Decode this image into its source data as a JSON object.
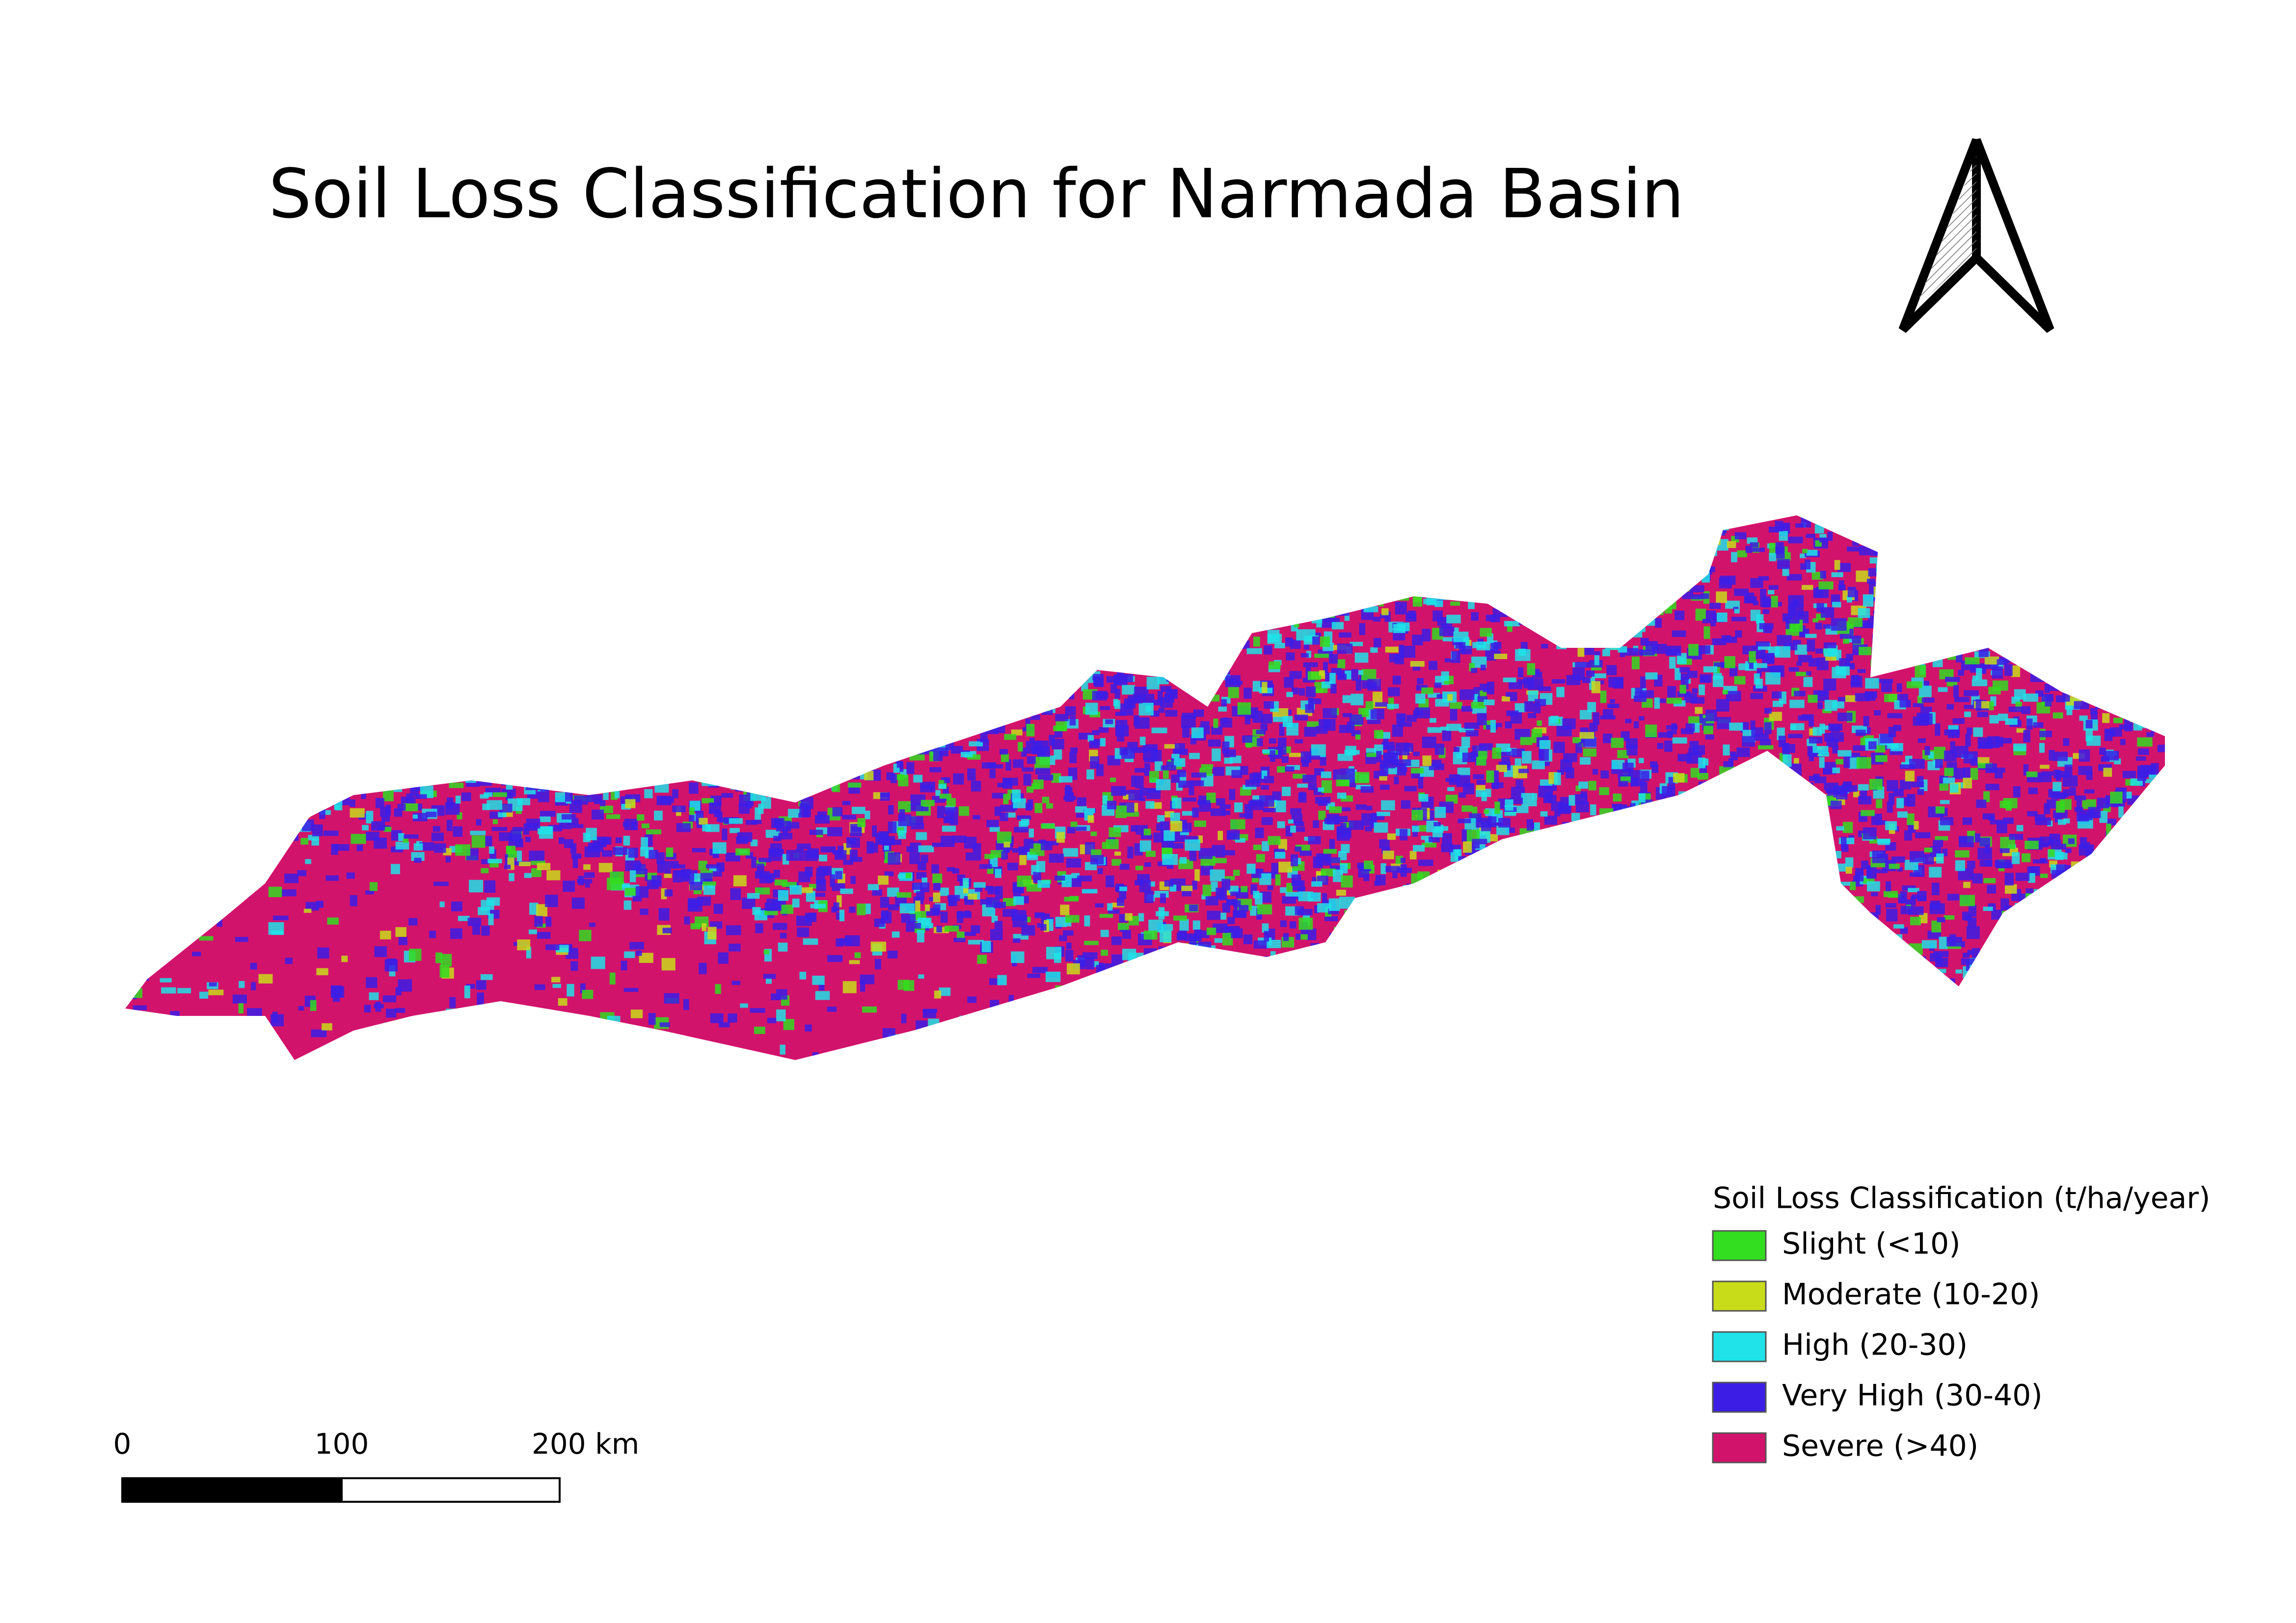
{
  "title": "Soil Loss Classification for Narmada Basin",
  "legend": {
    "title": "Soil Loss Classification (t/ha/year)",
    "items": [
      {
        "label": "Slight (<10)",
        "color": "#33dd1f"
      },
      {
        "label": "Moderate (10-20)",
        "color": "#c9dc19"
      },
      {
        "label": "High (20-30)",
        "color": "#1fe3e8"
      },
      {
        "label": "Very High (30-40)",
        "color": "#3b1de6"
      },
      {
        "label": "Severe (>40)",
        "color": "#d2136c"
      }
    ]
  },
  "scale_bar": {
    "labels": [
      "0",
      "100",
      "200 km"
    ]
  }
}
